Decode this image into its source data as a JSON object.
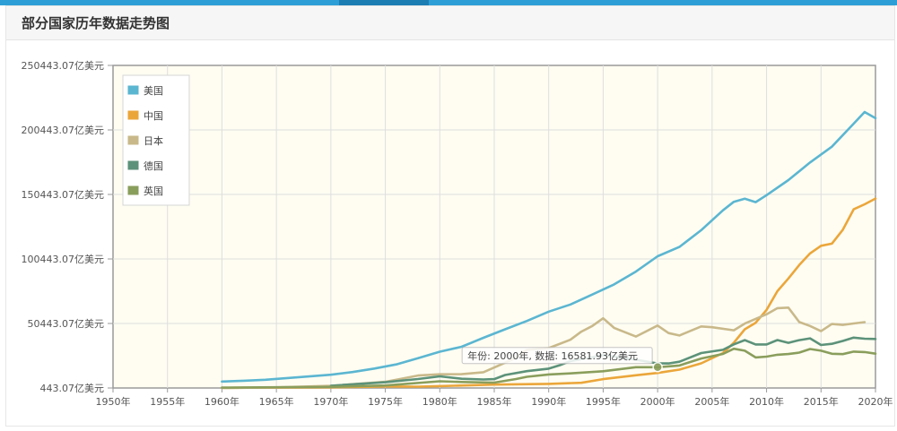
{
  "header": {
    "title": "部分国家历年数据走势图"
  },
  "chart_data": {
    "type": "line",
    "title": "",
    "xlabel": "",
    "ylabel": "",
    "xlim": [
      1950,
      2020
    ],
    "ylim": [
      443.07,
      250443.07
    ],
    "x_ticks": [
      "1950年",
      "1955年",
      "1960年",
      "1965年",
      "1970年",
      "1975年",
      "1980年",
      "1985年",
      "1990年",
      "1995年",
      "2000年",
      "2005年",
      "2010年",
      "2015年",
      "2020年"
    ],
    "y_ticks": [
      "443.07亿美元",
      "50443.07亿美元",
      "100443.07亿美元",
      "150443.07亿美元",
      "200443.07亿美元",
      "250443.07亿美元"
    ],
    "legend_position": "top-left",
    "grid": true,
    "series": [
      {
        "name": "美国",
        "color": "#5bb6d1",
        "x": [
          1960,
          1962,
          1964,
          1966,
          1968,
          1970,
          1972,
          1974,
          1976,
          1978,
          1980,
          1982,
          1984,
          1986,
          1988,
          1990,
          1992,
          1994,
          1996,
          1998,
          2000,
          2002,
          2004,
          2006,
          2007,
          2008,
          2009,
          2010,
          2012,
          2014,
          2016,
          2018,
          2019,
          2020
        ],
        "y": [
          5430,
          6050,
          6850,
          8150,
          9400,
          10740,
          12800,
          15490,
          18740,
          23570,
          28570,
          32420,
          39310,
          45900,
          52360,
          59630,
          65200,
          72870,
          80730,
          90630,
          102520,
          109770,
          122750,
          138150,
          144750,
          147130,
          144490,
          149920,
          161550,
          175220,
          187450,
          205330,
          214330,
          209530
        ]
      },
      {
        "name": "中国",
        "color": "#eba63a",
        "x": [
          1960,
          1965,
          1970,
          1975,
          1978,
          1980,
          1985,
          1990,
          1993,
          1995,
          1998,
          2000,
          2002,
          2004,
          2006,
          2007,
          2008,
          2009,
          2010,
          2011,
          2012,
          2013,
          2014,
          2015,
          2016,
          2017,
          2018,
          2019,
          2020
        ],
        "y": [
          600,
          700,
          930,
          1640,
          1500,
          1910,
          3100,
          3610,
          4450,
          7340,
          10290,
          12110,
          14710,
          19550,
          27520,
          35500,
          45940,
          51020,
          61010,
          75510,
          85320,
          95700,
          104760,
          110620,
          112330,
          123100,
          138950,
          142800,
          147230
        ]
      },
      {
        "name": "日本",
        "color": "#c9b98a",
        "x": [
          1960,
          1965,
          1970,
          1975,
          1978,
          1980,
          1982,
          1984,
          1986,
          1987,
          1988,
          1990,
          1992,
          1993,
          1994,
          1995,
          1996,
          1998,
          2000,
          2001,
          2002,
          2004,
          2005,
          2007,
          2008,
          2010,
          2011,
          2012,
          2013,
          2014,
          2015,
          2016,
          2017,
          2018,
          2019
        ],
        "y": [
          440,
          910,
          2130,
          5210,
          10110,
          11050,
          11170,
          12690,
          20000,
          24000,
          30000,
          31330,
          37870,
          44150,
          48500,
          54490,
          47060,
          40320,
          48870,
          43040,
          41150,
          48150,
          47550,
          45150,
          50380,
          57590,
          62330,
          62720,
          51560,
          48500,
          44450,
          50040,
          49310,
          50410,
          51480
        ]
      },
      {
        "name": "德国",
        "color": "#5c9279",
        "x": [
          1970,
          1975,
          1978,
          1980,
          1982,
          1984,
          1985,
          1986,
          1988,
          1990,
          1991,
          1992,
          1995,
          1998,
          2000,
          2001,
          2002,
          2004,
          2006,
          2007,
          2008,
          2009,
          2010,
          2011,
          2012,
          2013,
          2014,
          2015,
          2016,
          2017,
          2018,
          2019,
          2020
        ],
        "y": [
          2150,
          4900,
          7400,
          9500,
          7600,
          7060,
          7330,
          10500,
          13500,
          15470,
          18100,
          21300,
          25900,
          22400,
          19470,
          19450,
          20780,
          27500,
          30030,
          34250,
          37520,
          34180,
          34170,
          37580,
          35440,
          37530,
          38900,
          33810,
          34690,
          36890,
          39490,
          38610,
          38460
        ]
      },
      {
        "name": "英国",
        "color": "#8a9e5c",
        "x": [
          1960,
          1965,
          1970,
          1975,
          1980,
          1982,
          1985,
          1987,
          1988,
          1990,
          1992,
          1995,
          1998,
          2000,
          2002,
          2004,
          2006,
          2007,
          2008,
          2009,
          2010,
          2011,
          2012,
          2013,
          2014,
          2015,
          2016,
          2017,
          2018,
          2019,
          2020
        ],
        "y": [
          730,
          1000,
          1310,
          2400,
          5650,
          5100,
          4600,
          7400,
          9100,
          10930,
          11770,
          13440,
          16550,
          16580,
          17850,
          23260,
          26820,
          30880,
          29300,
          24100,
          24760,
          26220,
          26770,
          27860,
          30630,
          29320,
          26940,
          26660,
          28620,
          28300,
          27070
        ]
      }
    ],
    "tooltip": {
      "label": "年份: 2000年, 数据: 16581.93亿美元",
      "x": 2000,
      "y": 16581.93
    }
  }
}
